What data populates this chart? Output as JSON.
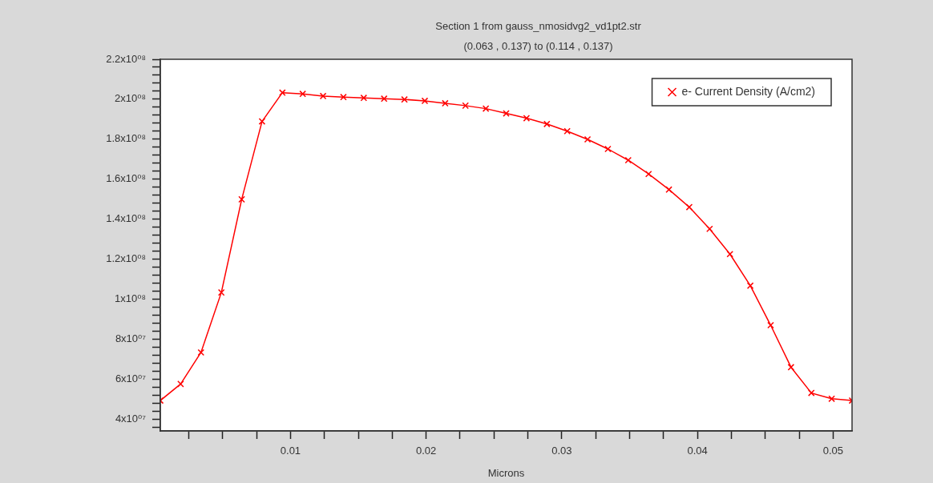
{
  "chart_data": {
    "type": "line",
    "title": "Section 1 from gauss_nmosidvg2_vd1pt2.str",
    "subtitle": "(0.063 , 0.137) to (0.114 , 0.137)",
    "xlabel": "Microns",
    "x": [
      0.0004,
      0.0019,
      0.0034,
      0.0049,
      0.0064,
      0.0079,
      0.0094,
      0.0109,
      0.0124,
      0.0139,
      0.0154,
      0.0169,
      0.0184,
      0.0199,
      0.0214,
      0.0229,
      0.0244,
      0.0259,
      0.0274,
      0.0289,
      0.0304,
      0.0319,
      0.0334,
      0.0349,
      0.0364,
      0.0379,
      0.0394,
      0.0409,
      0.0424,
      0.0439,
      0.0454,
      0.0469,
      0.0484,
      0.0499,
      0.0514
    ],
    "series": [
      {
        "name": "e- Current Density (A/cm2)",
        "color": "#ff0000",
        "values": [
          49200000.0,
          57500000.0,
          73300000.0,
          103300000.0,
          149900000.0,
          188900000.0,
          203300000.0,
          202700000.0,
          201600000.0,
          201100000.0,
          200700000.0,
          200300000.0,
          199900000.0,
          199200000.0,
          198000000.0,
          196800000.0,
          195300000.0,
          192900000.0,
          190500000.0,
          187600000.0,
          184000000.0,
          179900000.0,
          175100000.0,
          169500000.0,
          162600000.0,
          154800000.0,
          146000000.0,
          135100000.0,
          122500000.0,
          106700000.0,
          86900000.0,
          65900000.0,
          53000000.0,
          50100000.0,
          49200000.0
        ]
      }
    ],
    "xlim": [
      0.0004,
      0.0514
    ],
    "xticks": [
      {
        "value": 0.0025,
        "label": null
      },
      {
        "value": 0.005,
        "label": null
      },
      {
        "value": 0.0075,
        "label": null
      },
      {
        "value": 0.01,
        "label": "0.01"
      },
      {
        "value": 0.0125,
        "label": null
      },
      {
        "value": 0.015,
        "label": null
      },
      {
        "value": 0.0175,
        "label": null
      },
      {
        "value": 0.02,
        "label": "0.02"
      },
      {
        "value": 0.0225,
        "label": null
      },
      {
        "value": 0.025,
        "label": null
      },
      {
        "value": 0.0275,
        "label": null
      },
      {
        "value": 0.03,
        "label": "0.03"
      },
      {
        "value": 0.0325,
        "label": null
      },
      {
        "value": 0.035,
        "label": null
      },
      {
        "value": 0.0375,
        "label": null
      },
      {
        "value": 0.04,
        "label": "0.04"
      },
      {
        "value": 0.0425,
        "label": null
      },
      {
        "value": 0.045,
        "label": null
      },
      {
        "value": 0.0475,
        "label": null
      },
      {
        "value": 0.05,
        "label": "0.05"
      }
    ],
    "ylim": [
      34000000.0,
      220000000.0
    ],
    "yticks": [
      {
        "value": 36000000.0,
        "label": null
      },
      {
        "value": 40000000.0,
        "label": "4x10⁰⁷"
      },
      {
        "value": 44000000.0,
        "label": null
      },
      {
        "value": 48000000.0,
        "label": null
      },
      {
        "value": 52000000.0,
        "label": null
      },
      {
        "value": 56000000.0,
        "label": null
      },
      {
        "value": 60000000.0,
        "label": "6x10⁰⁷"
      },
      {
        "value": 64000000.0,
        "label": null
      },
      {
        "value": 68000000.0,
        "label": null
      },
      {
        "value": 72000000.0,
        "label": null
      },
      {
        "value": 76000000.0,
        "label": null
      },
      {
        "value": 80000000.0,
        "label": "8x10⁰⁷"
      },
      {
        "value": 84000000.0,
        "label": null
      },
      {
        "value": 88000000.0,
        "label": null
      },
      {
        "value": 92000000.0,
        "label": null
      },
      {
        "value": 96000000.0,
        "label": null
      },
      {
        "value": 100000000.0,
        "label": "1x10⁰⁸"
      },
      {
        "value": 104000000.0,
        "label": null
      },
      {
        "value": 108000000.0,
        "label": null
      },
      {
        "value": 112000000.0,
        "label": null
      },
      {
        "value": 116000000.0,
        "label": null
      },
      {
        "value": 120000000.0,
        "label": "1.2x10⁰⁸"
      },
      {
        "value": 124000000.0,
        "label": null
      },
      {
        "value": 128000000.0,
        "label": null
      },
      {
        "value": 132000000.0,
        "label": null
      },
      {
        "value": 136000000.0,
        "label": null
      },
      {
        "value": 140000000.0,
        "label": "1.4x10⁰⁸"
      },
      {
        "value": 144000000.0,
        "label": null
      },
      {
        "value": 148000000.0,
        "label": null
      },
      {
        "value": 152000000.0,
        "label": null
      },
      {
        "value": 156000000.0,
        "label": null
      },
      {
        "value": 160000000.0,
        "label": "1.6x10⁰⁸"
      },
      {
        "value": 164000000.0,
        "label": null
      },
      {
        "value": 168000000.0,
        "label": null
      },
      {
        "value": 172000000.0,
        "label": null
      },
      {
        "value": 176000000.0,
        "label": null
      },
      {
        "value": 180000000.0,
        "label": "1.8x10⁰⁸"
      },
      {
        "value": 184000000.0,
        "label": null
      },
      {
        "value": 188000000.0,
        "label": null
      },
      {
        "value": 192000000.0,
        "label": null
      },
      {
        "value": 196000000.0,
        "label": null
      },
      {
        "value": 200000000.0,
        "label": "2x10⁰⁸"
      },
      {
        "value": 204000000.0,
        "label": null
      },
      {
        "value": 208000000.0,
        "label": null
      },
      {
        "value": 212000000.0,
        "label": null
      },
      {
        "value": 216000000.0,
        "label": null
      },
      {
        "value": 220000000.0,
        "label": "2.2x10⁰⁸"
      }
    ],
    "grid": false,
    "legend": "top right",
    "marker": "cross",
    "line_style": "solid"
  }
}
